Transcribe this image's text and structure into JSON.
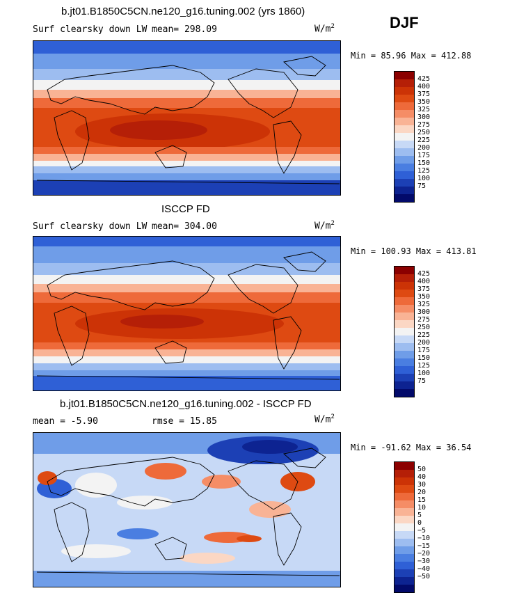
{
  "season": "DJF",
  "panels": [
    {
      "title": "b.jt01.B1850C5CN.ne120_g16.tuning.002 (yrs 1860)",
      "variable": "Surf clearsky down LW",
      "stat_text": "mean= 298.09",
      "units": "W/m",
      "units_sup": "2",
      "minmax": "Min =  85.96 Max = 412.88",
      "colorbar_labels": [
        "425",
        "400",
        "375",
        "350",
        "325",
        "300",
        "275",
        "250",
        "225",
        "200",
        "175",
        "150",
        "125",
        "100",
        "75"
      ]
    },
    {
      "title": "ISCCP FD",
      "variable": "Surf clearsky down LW",
      "stat_text": "mean= 304.00",
      "units": "W/m",
      "units_sup": "2",
      "minmax": "Min = 100.93 Max = 413.81",
      "colorbar_labels": [
        "425",
        "400",
        "375",
        "350",
        "325",
        "300",
        "275",
        "250",
        "225",
        "200",
        "175",
        "150",
        "125",
        "100",
        "75"
      ]
    },
    {
      "title": "b.jt01.B1850C5CN.ne120_g16.tuning.002 - ISCCP FD",
      "mean_text": "mean =  -5.90",
      "rmse_text": "rmse =  15.85",
      "units": "W/m",
      "units_sup": "2",
      "minmax": "Min = -91.62 Max =  36.54",
      "colorbar_labels": [
        "50",
        "40",
        "30",
        "20",
        "15",
        "10",
        "5",
        "0",
        "−5",
        "−10",
        "−15",
        "−20",
        "−30",
        "−40",
        "−50"
      ]
    }
  ],
  "colors": {
    "ramp": [
      "#8b0000",
      "#b51f07",
      "#cc3306",
      "#de4a12",
      "#ee6a3a",
      "#f58d66",
      "#f9b395",
      "#fbd7c4",
      "#f3f3f3",
      "#c7d9f6",
      "#9dbdf0",
      "#6f9de8",
      "#4a7ee1",
      "#2f60d6",
      "#1c40b5",
      "#0d2391",
      "#020a6a"
    ]
  }
}
